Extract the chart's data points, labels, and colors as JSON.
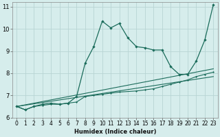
{
  "xlabel": "Humidex (Indice chaleur)",
  "bg_color": "#d6edec",
  "grid_color": "#b8d4d4",
  "line_color": "#1a6b5a",
  "xlim": [
    -0.5,
    23.5
  ],
  "ylim": [
    6,
    11.2
  ],
  "yticks": [
    6,
    7,
    8,
    9,
    10,
    11
  ],
  "xticks": [
    0,
    1,
    2,
    3,
    4,
    5,
    6,
    7,
    8,
    9,
    10,
    11,
    12,
    13,
    14,
    15,
    16,
    17,
    18,
    19,
    20,
    21,
    22,
    23
  ],
  "series1_x": [
    0,
    1,
    2,
    3,
    4,
    5,
    6,
    7,
    8,
    9,
    10,
    11,
    12,
    13,
    14,
    15,
    16,
    17,
    18,
    19,
    20,
    21,
    22,
    23
  ],
  "series1_y": [
    6.5,
    6.35,
    6.5,
    6.6,
    6.65,
    6.6,
    6.65,
    6.95,
    8.45,
    9.2,
    10.35,
    10.05,
    10.25,
    9.6,
    9.2,
    9.15,
    9.05,
    9.05,
    8.3,
    7.95,
    7.95,
    8.55,
    9.5,
    11.1
  ],
  "series2_x": [
    0,
    1,
    2,
    3,
    4,
    5,
    6,
    7,
    8,
    9,
    10,
    11,
    12,
    14,
    15,
    16,
    17,
    18,
    19,
    20,
    21,
    22,
    23
  ],
  "series2_y": [
    6.5,
    6.35,
    6.5,
    6.55,
    6.6,
    6.6,
    6.65,
    6.7,
    6.95,
    7.0,
    7.05,
    7.1,
    7.15,
    7.2,
    7.25,
    7.3,
    7.4,
    7.5,
    7.6,
    7.7,
    7.85,
    7.95,
    8.05
  ],
  "line1_x": [
    0,
    23
  ],
  "line1_y": [
    6.5,
    8.2
  ],
  "line2_x": [
    0,
    23
  ],
  "line2_y": [
    6.5,
    7.85
  ],
  "xlabel_fontsize": 6,
  "tick_fontsize": 5.5
}
